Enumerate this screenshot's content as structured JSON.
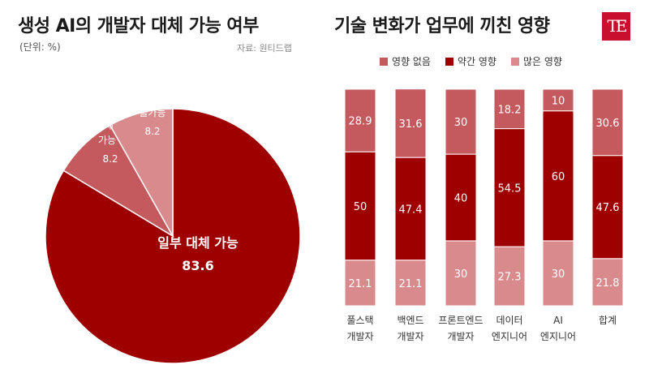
{
  "header": {
    "left_title": "생성 AI의 개발자 대체 가능 여부",
    "right_title": "기술 변화가 업무에 끼친 영향",
    "unit": "(단위: %)",
    "source": "자료: 원티드랩",
    "logo_text": "TE"
  },
  "colors": {
    "dark_red": "#9e0000",
    "medium_red": "#c45a5e",
    "light_red": "#d98a8c",
    "logo_red": "#c8102e"
  },
  "chart_data": [
    {
      "type": "pie",
      "title": "생성 AI의 개발자 대체 가능 여부",
      "unit": "%",
      "slices": [
        {
          "label": "일부 대체 가능",
          "value": 83.6,
          "color": "#9e0000"
        },
        {
          "label": "완전 대체 가능",
          "value": 8.2,
          "color": "#c45a5e"
        },
        {
          "label": "전혀 불가능",
          "value": 8.2,
          "color": "#d98a8c"
        }
      ]
    },
    {
      "type": "bar",
      "stacked": true,
      "title": "기술 변화가 업무에 끼친 영향",
      "unit": "%",
      "categories": [
        "풀스택 개발자",
        "백엔드 개발자",
        "프론트엔드 개발자",
        "데이터 엔지니어",
        "AI 엔지니어",
        "합계"
      ],
      "series": [
        {
          "name": "많은 영향",
          "values": [
            21.1,
            21.1,
            30,
            27.3,
            30,
            21.8
          ],
          "color": "#d98a8c"
        },
        {
          "name": "약간 영향",
          "values": [
            50,
            47.4,
            40,
            54.5,
            60,
            47.6
          ],
          "color": "#9e0000"
        },
        {
          "name": "영향 없음",
          "values": [
            28.9,
            31.6,
            30,
            18.2,
            10,
            30.6
          ],
          "color": "#c45a5e"
        }
      ],
      "legend": {
        "placement": "top",
        "order": [
          "영향 없음",
          "약간 영향",
          "많은 영향"
        ]
      },
      "ylim": [
        0,
        100
      ]
    }
  ]
}
